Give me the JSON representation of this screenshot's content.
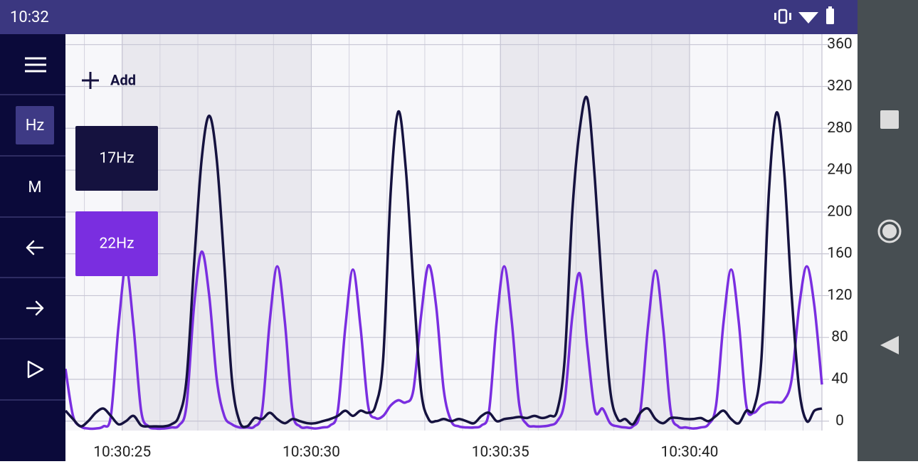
{
  "status_bar": {
    "time": "10:32"
  },
  "sidebar": {
    "buttons": [
      "Hz",
      "M"
    ]
  },
  "add_button": "Add",
  "chart_data": {
    "type": "line",
    "x": [
      23.5,
      23.7,
      23.9,
      24.1,
      24.3,
      24.5,
      24.7,
      24.9,
      25.1,
      25.3,
      25.5,
      25.7,
      25.9,
      26.1,
      26.3,
      26.5,
      26.7,
      26.9,
      27.1,
      27.3,
      27.5,
      27.7,
      27.9,
      28.1,
      28.3,
      28.5,
      28.7,
      28.9,
      29.1,
      29.3,
      29.5,
      29.7,
      29.9,
      30.1,
      30.3,
      30.5,
      30.7,
      30.9,
      31.1,
      31.3,
      31.5,
      31.7,
      31.9,
      32.1,
      32.3,
      32.5,
      32.7,
      32.9,
      33.1,
      33.3,
      33.5,
      33.7,
      33.9,
      34.1,
      34.3,
      34.5,
      34.7,
      34.9,
      35.1,
      35.3,
      35.5,
      35.7,
      35.9,
      36.1,
      36.3,
      36.5,
      36.7,
      36.9,
      37.1,
      37.3,
      37.5,
      37.7,
      37.9,
      38.1,
      38.3,
      38.5,
      38.7,
      38.9,
      39.1,
      39.3,
      39.5,
      39.7,
      39.9,
      40.1,
      40.3,
      40.5,
      40.7,
      40.9,
      41.1,
      41.3,
      41.5,
      41.7,
      41.9,
      42.1,
      42.3,
      42.5,
      42.7,
      42.9,
      43.1,
      43.3,
      43.5
    ],
    "xlim": [
      23.5,
      43.5
    ],
    "xticks": [
      {
        "value": 25,
        "label": "10:30:25"
      },
      {
        "value": 30,
        "label": "10:30:30"
      },
      {
        "value": 35,
        "label": "10:30:35"
      },
      {
        "value": 40,
        "label": "10:30:40"
      }
    ],
    "ylim": [
      -9,
      370
    ],
    "yticks": [
      0,
      40,
      80,
      120,
      160,
      200,
      240,
      280,
      320,
      360
    ],
    "grid": true,
    "series": [
      {
        "name": "17Hz",
        "color": "#15123f",
        "values": [
          10,
          2,
          -5,
          0,
          8,
          12,
          5,
          -3,
          0,
          5,
          -4,
          -5,
          -5,
          -5,
          -3,
          5,
          40,
          150,
          250,
          292,
          250,
          150,
          40,
          0,
          -5,
          3,
          2,
          8,
          2,
          -2,
          2,
          0,
          -2,
          -2,
          0,
          2,
          5,
          10,
          5,
          10,
          8,
          15,
          60,
          220,
          296,
          240,
          130,
          30,
          2,
          0,
          2,
          0,
          2,
          0,
          -2,
          5,
          8,
          0,
          2,
          3,
          4,
          3,
          5,
          3,
          5,
          10,
          60,
          200,
          280,
          308,
          230,
          120,
          30,
          2,
          2,
          -3,
          8,
          12,
          2,
          -2,
          3,
          3,
          2,
          2,
          3,
          0,
          5,
          10,
          2,
          -2,
          10,
          12,
          60,
          220,
          295,
          240,
          120,
          30,
          0,
          10,
          12
        ]
      },
      {
        "name": "22Hz",
        "color": "#7a2ee0",
        "values": [
          50,
          5,
          -5,
          -7,
          -7,
          -5,
          5,
          90,
          147,
          90,
          10,
          -5,
          -7,
          -7,
          -6,
          -4,
          15,
          110,
          162,
          120,
          40,
          5,
          -3,
          -6,
          -6,
          -5,
          10,
          95,
          148,
          95,
          10,
          -5,
          -6,
          -7,
          -6,
          -4,
          10,
          90,
          145,
          90,
          15,
          3,
          5,
          15,
          20,
          18,
          30,
          100,
          149,
          110,
          30,
          0,
          -5,
          -6,
          -6,
          -4,
          10,
          95,
          148,
          95,
          15,
          -3,
          -5,
          -5,
          -4,
          0,
          20,
          100,
          141,
          70,
          10,
          12,
          -2,
          -5,
          -6,
          -5,
          10,
          90,
          144,
          90,
          10,
          -5,
          -6,
          -7,
          -6,
          -3,
          15,
          95,
          145,
          95,
          15,
          8,
          15,
          18,
          18,
          20,
          40,
          110,
          148,
          110,
          35
        ]
      }
    ]
  }
}
